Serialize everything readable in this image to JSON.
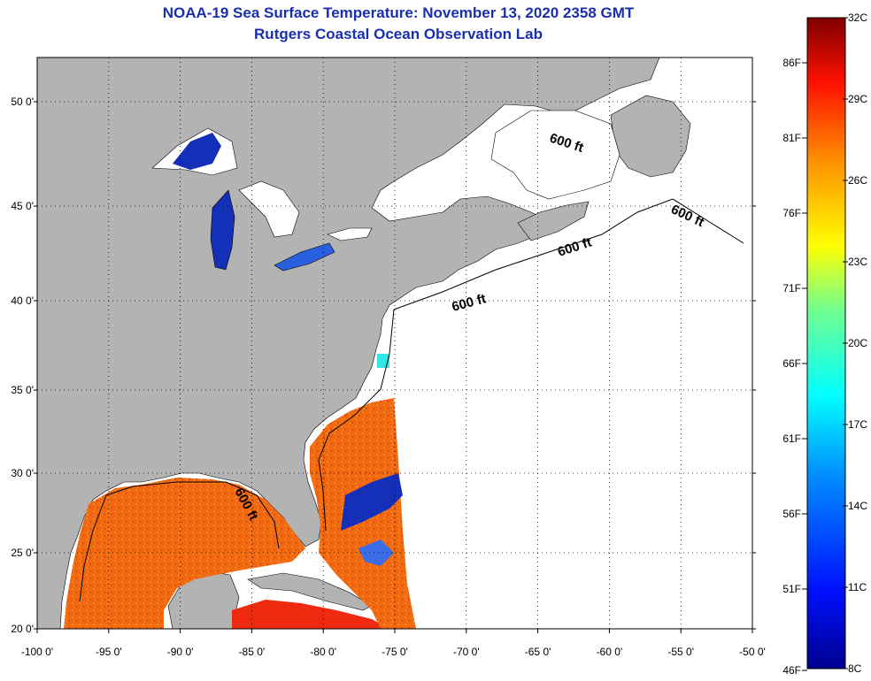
{
  "title": "NOAA-19 Sea Surface Temperature:  November 13, 2020 2358 GMT",
  "subtitle": "Rutgers Coastal Ocean Observation Lab",
  "contour_label": "600 ft",
  "x_axis": {
    "ticks": [
      -100,
      -95,
      -90,
      -85,
      -80,
      -75,
      -70,
      -65,
      -60,
      -55,
      -50
    ],
    "labels": [
      "-100 0'",
      "-95 0'",
      "-90 0'",
      "-85 0'",
      "-80 0'",
      "-75 0'",
      "-70 0'",
      "-65 0'",
      "-60 0'",
      "-55 0'",
      "-50 0'"
    ]
  },
  "y_axis": {
    "ticks": [
      50,
      45,
      40,
      35,
      30,
      25,
      20
    ],
    "labels": [
      "50 0'",
      "45 0'",
      "40 0'",
      "35 0'",
      "30 0'",
      "25 0'",
      "20 0'"
    ]
  },
  "colorbar": {
    "celsius_labels": [
      "32C",
      "29C",
      "26C",
      "23C",
      "20C",
      "17C",
      "14C",
      "11C",
      "8C"
    ],
    "fahrenheit_labels": [
      "86F",
      "81F",
      "76F",
      "71F",
      "66F",
      "61F",
      "56F",
      "51F",
      "46F"
    ],
    "range_c": [
      8,
      32
    ]
  },
  "colors": {
    "land": "#b3b3b3",
    "ocean_no_data": "#ffffff",
    "title": "#1a2fb0",
    "warm_sst": "#f06a12",
    "cool_sst": "#1530b8"
  }
}
